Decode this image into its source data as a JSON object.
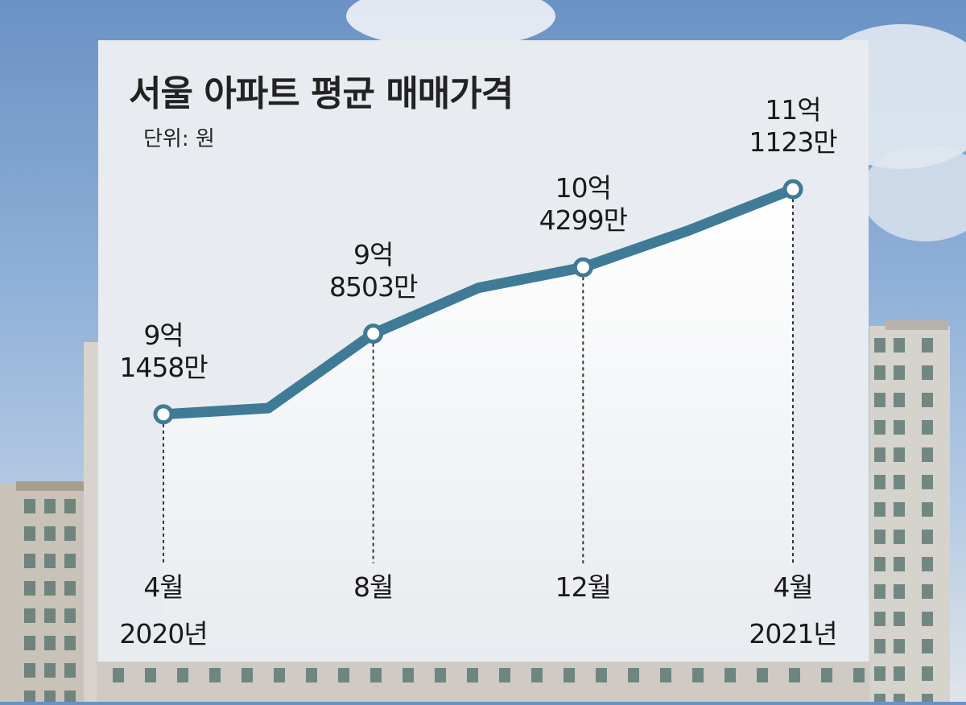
{
  "chart_data": {
    "type": "line",
    "title": "서울 아파트 평균 매매가격",
    "unit_label": "단위: 원",
    "x": [
      "2020-04",
      "2020-06",
      "2020-08",
      "2020-10",
      "2020-12",
      "2021-02",
      "2021-04"
    ],
    "values": [
      914580000,
      920000000,
      985030000,
      1025000000,
      1042990000,
      1075000000,
      1111230000
    ],
    "ylim": [
      700000000,
      1150000000
    ],
    "grid": false,
    "line_color": "#3f7a96",
    "data_labels": [
      {
        "index": 0,
        "line1": "9억",
        "line2": "1458만"
      },
      {
        "index": 2,
        "line1": "9억",
        "line2": "8503만"
      },
      {
        "index": 4,
        "line1": "10억",
        "line2": "4299만"
      },
      {
        "index": 6,
        "line1": "11억",
        "line2": "1123만"
      }
    ],
    "x_tick_labels": [
      {
        "index": 0,
        "month": "4월",
        "year": "2020년"
      },
      {
        "index": 2,
        "month": "8월",
        "year": ""
      },
      {
        "index": 4,
        "month": "12월",
        "year": ""
      },
      {
        "index": 6,
        "month": "4월",
        "year": "2021년"
      }
    ]
  }
}
